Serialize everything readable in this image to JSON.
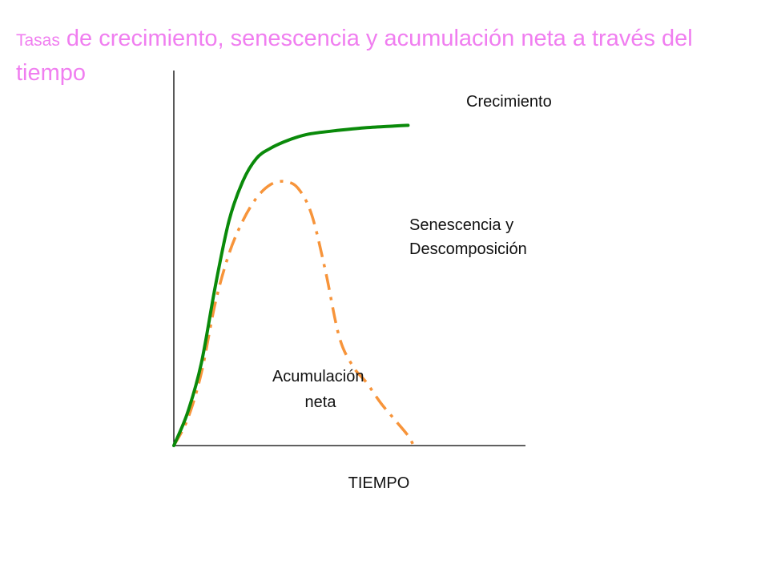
{
  "slide": {
    "title_small": "Tasas",
    "title_rest": " de crecimiento, senescencia y acumulación neta a través del tiempo"
  },
  "chart_data": {
    "type": "line",
    "title": "Tasas de crecimiento, senescencia y acumulación neta a través del tiempo",
    "xlabel": "TIEMPO",
    "ylabel": "",
    "xlim": [
      0,
      100
    ],
    "ylim": [
      0,
      100
    ],
    "grid": false,
    "legend": "none",
    "series": [
      {
        "name": "Crecimiento",
        "color": "#0a8a0a",
        "style": "solid",
        "x": [
          0,
          5,
          10,
          15,
          20,
          25,
          30,
          35,
          40,
          45,
          50,
          60,
          70,
          80,
          85
        ],
        "y": [
          0,
          10,
          25,
          48,
          68,
          80,
          87,
          90,
          92,
          93.5,
          94.5,
          95.5,
          96.3,
          96.8,
          97
        ]
      },
      {
        "name": "Senescencia y Descompisición",
        "color": "#f7943a",
        "style": "dash-dot",
        "x": [
          0,
          5,
          10,
          15,
          20,
          25,
          30,
          35,
          40,
          45,
          50,
          55,
          60,
          65,
          70,
          75,
          80,
          85,
          87
        ],
        "y": [
          0,
          8,
          22,
          43,
          58,
          68,
          75,
          79,
          80,
          78,
          70,
          53,
          33,
          24,
          19,
          13,
          8,
          3,
          0
        ]
      }
    ],
    "annotations": [
      {
        "id": "growth",
        "text_lines": [
          "Crecimiento"
        ]
      },
      {
        "id": "senescence",
        "text_lines": [
          "Senescencia y",
          "Descomposición"
        ]
      },
      {
        "id": "net",
        "text_lines": [
          "Acumulación",
          "neta"
        ]
      }
    ]
  }
}
